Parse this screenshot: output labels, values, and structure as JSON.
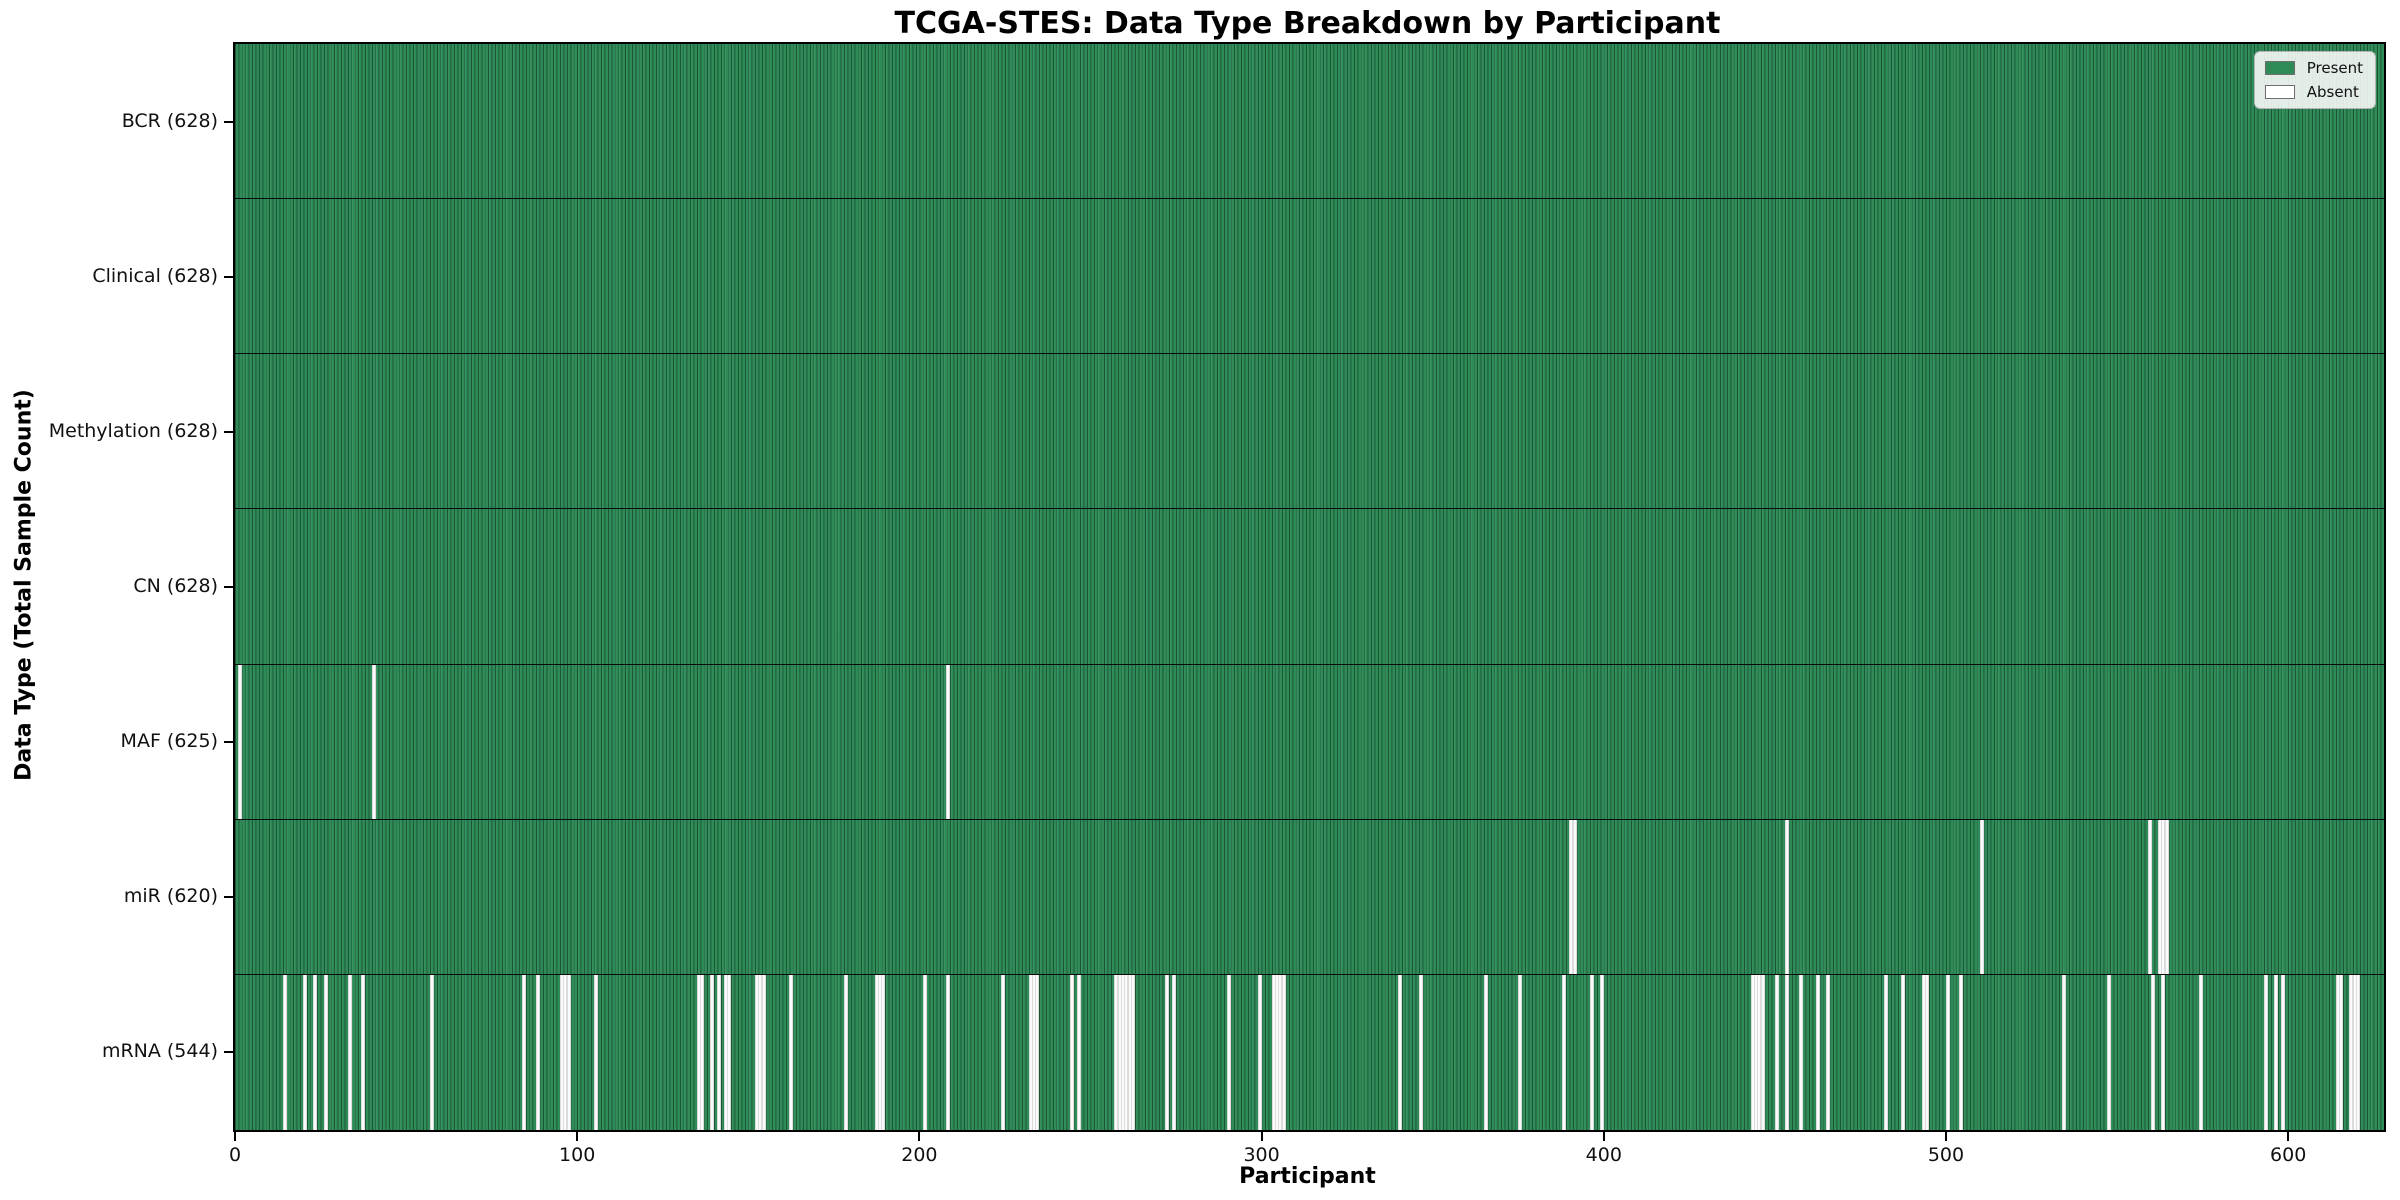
{
  "chart_data": {
    "type": "heatmap",
    "title": "TCGA-STES: Data Type Breakdown by Participant",
    "xlabel": "Participant",
    "ylabel": "Data Type (Total Sample Count)",
    "n_participants": 628,
    "x_ticks": [
      0,
      100,
      200,
      300,
      400,
      500,
      600
    ],
    "grid": false,
    "colors": {
      "present": "#2e8b57",
      "absent": "#fbfbfb",
      "bar_edge": "#0d3d26",
      "row_divider": "#0a0a0a",
      "plot_border": "#000000"
    },
    "legend": {
      "position": "upper right",
      "items": [
        {
          "label": "Present",
          "color": "#2e8b57"
        },
        {
          "label": "Absent",
          "color": "#ffffff"
        }
      ]
    },
    "rows": [
      {
        "data_type": "BCR",
        "label": "BCR (628)",
        "present_count": 628,
        "absent_participants": []
      },
      {
        "data_type": "Clinical",
        "label": "Clinical (628)",
        "present_count": 628,
        "absent_participants": []
      },
      {
        "data_type": "Methylation",
        "label": "Methylation (628)",
        "present_count": 628,
        "absent_participants": []
      },
      {
        "data_type": "CN",
        "label": "CN (628)",
        "present_count": 628,
        "absent_participants": []
      },
      {
        "data_type": "MAF",
        "label": "MAF (625)",
        "present_count": 625,
        "absent_participants": [
          1,
          40,
          208
        ]
      },
      {
        "data_type": "miR",
        "label": "miR (620)",
        "present_count": 620,
        "absent_participants": [
          390,
          391,
          453,
          510,
          559,
          562,
          563,
          564
        ]
      },
      {
        "data_type": "mRNA",
        "label": "mRNA (544)",
        "present_count": 544,
        "absent_participants": [
          14,
          20,
          23,
          26,
          33,
          37,
          57,
          84,
          88,
          95,
          96,
          97,
          105,
          135,
          136,
          139,
          141,
          143,
          144,
          152,
          153,
          154,
          162,
          178,
          187,
          188,
          189,
          201,
          208,
          224,
          232,
          233,
          234,
          244,
          246,
          257,
          258,
          259,
          260,
          261,
          262,
          272,
          274,
          290,
          299,
          303,
          304,
          305,
          306,
          340,
          346,
          365,
          375,
          388,
          396,
          399,
          443,
          444,
          445,
          446,
          450,
          453,
          457,
          462,
          465,
          482,
          487,
          493,
          494,
          500,
          504,
          534,
          547,
          560,
          563,
          574,
          593,
          596,
          598,
          614,
          615,
          618,
          619,
          620
        ]
      }
    ]
  }
}
